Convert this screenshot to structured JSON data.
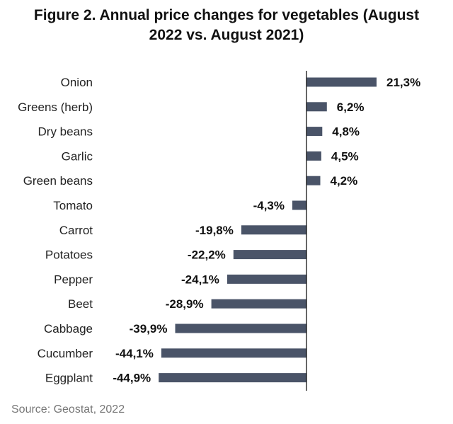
{
  "title_line1": "Figure 2. Annual price changes for vegetables (August",
  "title_line2": "2022 vs. August 2021)",
  "source": "Source: Geostat, 2022",
  "colors": {
    "bar": "#4a5468",
    "axis": "#000000"
  },
  "chart_data": {
    "type": "bar",
    "orientation": "horizontal",
    "title": "Figure 2. Annual price changes for vegetables (August 2022 vs. August 2021)",
    "categories": [
      "Onion",
      "Greens (herb)",
      "Dry beans",
      "Garlic",
      "Green beans",
      "Tomato",
      "Carrot",
      "Potatoes",
      "Pepper",
      "Beet",
      "Cabbage",
      "Cucumber",
      "Eggplant"
    ],
    "values": [
      21.3,
      6.2,
      4.8,
      4.5,
      4.2,
      -4.3,
      -19.8,
      -22.2,
      -24.1,
      -28.9,
      -39.9,
      -44.1,
      -44.9
    ],
    "value_labels": [
      "21,3%",
      "6,2%",
      "4,8%",
      "4,5%",
      "4,2%",
      "-4,3%",
      "-19,8%",
      "-22,2%",
      "-24,1%",
      "-28,9%",
      "-39,9%",
      "-44,1%",
      "-44,9%"
    ],
    "xlim": [
      -50,
      25
    ],
    "grid": false,
    "legend": "none",
    "xlabel": "",
    "ylabel": ""
  }
}
